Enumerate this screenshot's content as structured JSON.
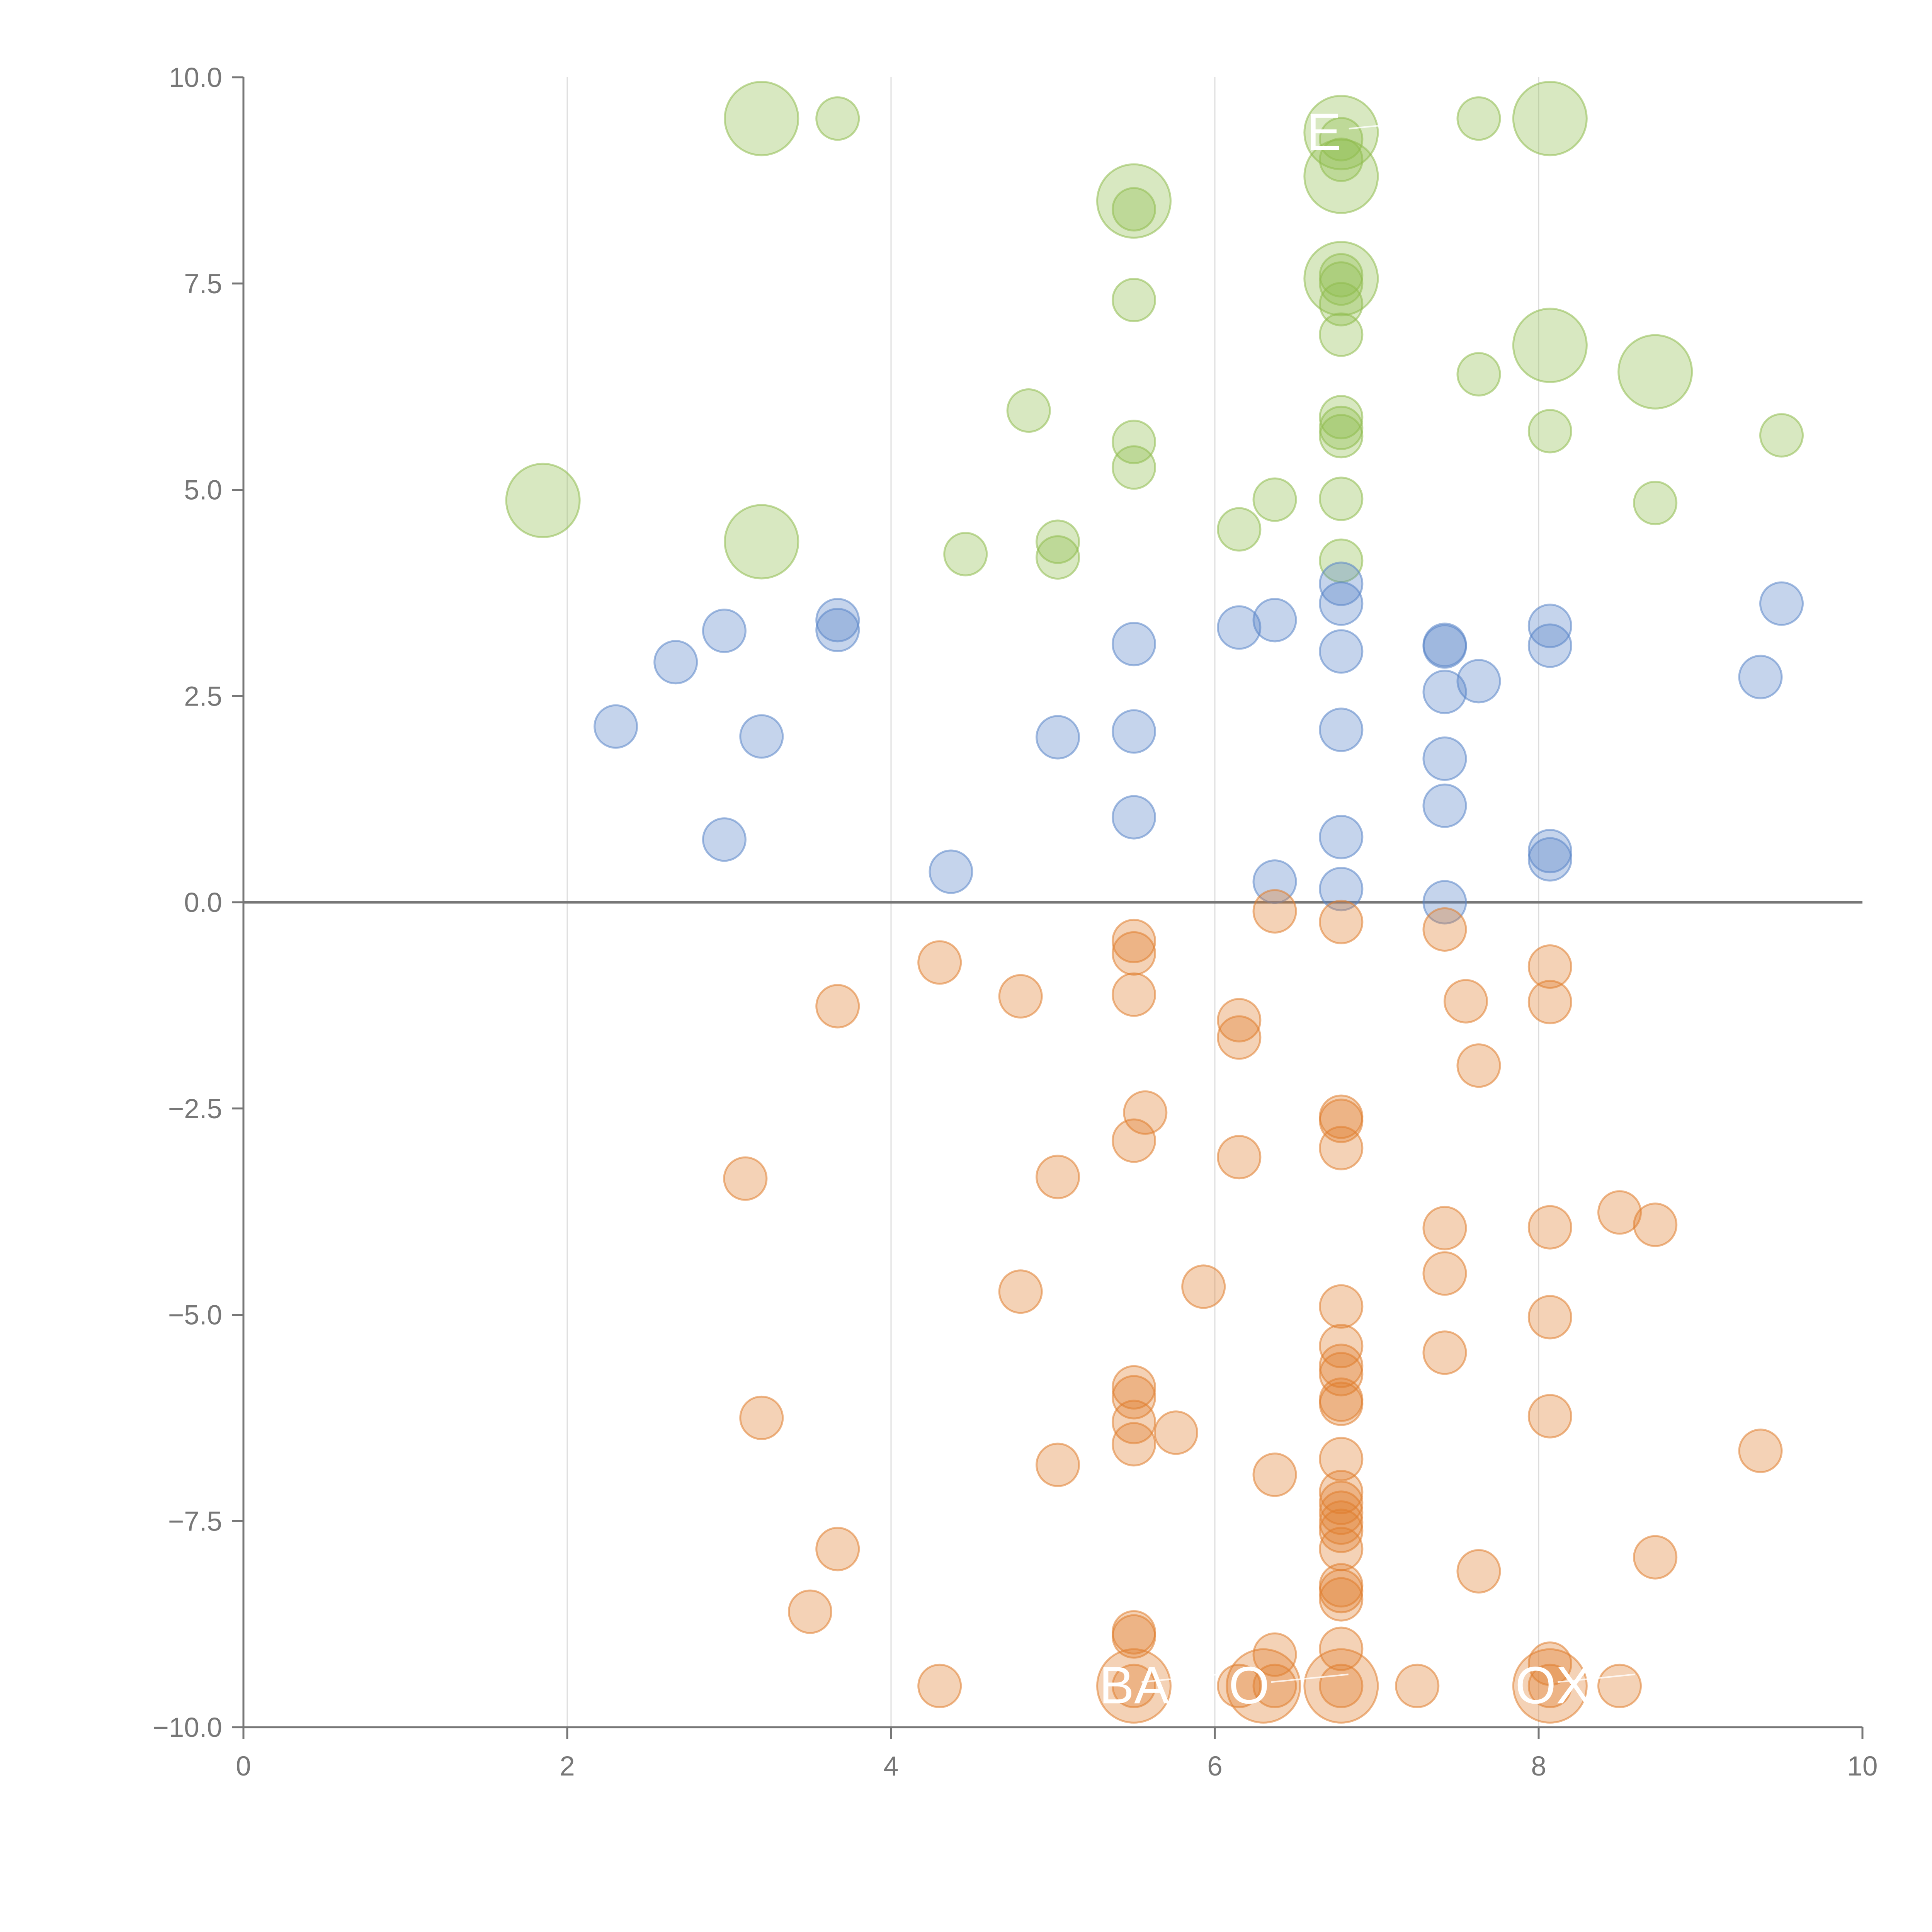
{
  "chart_data": {
    "type": "scatter",
    "title": "",
    "xlabel": "",
    "ylabel": "",
    "xlim": [
      0,
      10
    ],
    "ylim": [
      -10,
      10
    ],
    "x_ticks": [
      "0",
      "2",
      "4",
      "6",
      "8",
      "10"
    ],
    "y_ticks": [
      "10.0",
      "7.5",
      "5.0",
      "2.5",
      "0.0",
      "−2.5",
      "−5.0",
      "−7.5",
      "−10.0"
    ],
    "grid": "vertical",
    "zero_line": true,
    "colors": {
      "green": "#8fbc4e",
      "blue": "#5a85c8",
      "orange": "#e07e2e",
      "axis": "#777777",
      "grid": "#dddddd",
      "zero": "#777777"
    },
    "series": [
      {
        "name": "green",
        "points": [
          [
            3.2,
            9.5,
            3
          ],
          [
            3.67,
            9.5,
            1
          ],
          [
            5.5,
            8.5,
            3
          ],
          [
            5.5,
            8.4,
            1
          ],
          [
            6.78,
            9.33,
            3
          ],
          [
            6.78,
            9.25,
            1
          ],
          [
            6.78,
            9.0,
            1
          ],
          [
            6.78,
            8.8,
            3
          ],
          [
            7.63,
            9.5,
            1
          ],
          [
            8.07,
            9.5,
            3
          ],
          [
            5.5,
            7.3,
            1
          ],
          [
            6.78,
            7.56,
            3
          ],
          [
            6.78,
            7.6,
            1
          ],
          [
            6.78,
            7.5,
            1
          ],
          [
            6.78,
            7.25,
            1
          ],
          [
            6.78,
            6.88,
            1
          ],
          [
            8.07,
            6.75,
            3
          ],
          [
            8.72,
            6.43,
            3
          ],
          [
            7.63,
            6.4,
            1
          ],
          [
            4.85,
            5.96,
            1
          ],
          [
            5.5,
            5.58,
            1
          ],
          [
            5.5,
            5.27,
            1
          ],
          [
            6.78,
            5.88,
            1
          ],
          [
            6.78,
            5.75,
            1
          ],
          [
            6.78,
            5.65,
            1
          ],
          [
            8.07,
            5.71,
            1
          ],
          [
            9.5,
            5.66,
            1
          ],
          [
            1.85,
            4.87,
            3
          ],
          [
            3.2,
            4.37,
            3
          ],
          [
            4.46,
            4.22,
            1
          ],
          [
            5.03,
            4.37,
            1
          ],
          [
            5.03,
            4.18,
            1
          ],
          [
            6.15,
            4.52,
            1
          ],
          [
            6.37,
            4.88,
            1
          ],
          [
            6.78,
            4.89,
            1
          ],
          [
            6.78,
            4.14,
            1
          ],
          [
            8.72,
            4.84,
            1
          ]
        ]
      },
      {
        "name": "blue",
        "points": [
          [
            3.67,
            3.42,
            1
          ],
          [
            3.67,
            3.3,
            1
          ],
          [
            2.97,
            3.29,
            1
          ],
          [
            2.67,
            2.91,
            1
          ],
          [
            2.3,
            2.13,
            1
          ],
          [
            3.2,
            2.01,
            1
          ],
          [
            2.97,
            0.76,
            1
          ],
          [
            4.37,
            0.37,
            1
          ],
          [
            5.03,
            2.0,
            1
          ],
          [
            5.5,
            3.13,
            1
          ],
          [
            5.5,
            2.07,
            1
          ],
          [
            5.5,
            1.03,
            1
          ],
          [
            6.15,
            3.33,
            1
          ],
          [
            6.37,
            3.42,
            1
          ],
          [
            6.37,
            0.25,
            1
          ],
          [
            6.78,
            3.86,
            1
          ],
          [
            6.78,
            3.62,
            1
          ],
          [
            6.78,
            3.04,
            1
          ],
          [
            6.78,
            2.09,
            1
          ],
          [
            6.78,
            0.79,
            1
          ],
          [
            6.78,
            0.16,
            1
          ],
          [
            7.42,
            3.12,
            1
          ],
          [
            7.42,
            3.1,
            1
          ],
          [
            7.42,
            2.55,
            1
          ],
          [
            7.42,
            1.74,
            1
          ],
          [
            7.42,
            1.17,
            1
          ],
          [
            7.42,
            0.0,
            1
          ],
          [
            7.63,
            2.68,
            1
          ],
          [
            8.07,
            3.35,
            1
          ],
          [
            8.07,
            3.11,
            1
          ],
          [
            8.07,
            0.62,
            1
          ],
          [
            8.07,
            0.52,
            1
          ],
          [
            9.37,
            2.73,
            1
          ],
          [
            9.5,
            3.62,
            1
          ]
        ]
      },
      {
        "name": "orange",
        "points": [
          [
            3.67,
            -1.26,
            1
          ],
          [
            3.1,
            -3.35,
            1
          ],
          [
            3.2,
            -6.25,
            1
          ],
          [
            3.67,
            -7.84,
            1
          ],
          [
            3.5,
            -8.6,
            1
          ],
          [
            4.3,
            -0.73,
            1
          ],
          [
            4.3,
            -9.5,
            1
          ],
          [
            4.8,
            -1.14,
            1
          ],
          [
            4.8,
            -4.72,
            1
          ],
          [
            5.03,
            -3.33,
            1
          ],
          [
            5.03,
            -6.82,
            1
          ],
          [
            5.5,
            -0.47,
            1
          ],
          [
            5.5,
            -0.62,
            1
          ],
          [
            5.5,
            -1.12,
            1
          ],
          [
            5.5,
            -2.89,
            1
          ],
          [
            5.57,
            -2.55,
            1
          ],
          [
            5.5,
            -5.88,
            1
          ],
          [
            5.5,
            -6.0,
            1
          ],
          [
            5.5,
            -6.3,
            1
          ],
          [
            5.5,
            -6.57,
            1
          ],
          [
            5.76,
            -6.43,
            1
          ],
          [
            5.5,
            -8.85,
            1
          ],
          [
            5.5,
            -8.9,
            1
          ],
          [
            5.5,
            -9.5,
            3
          ],
          [
            5.5,
            -9.5,
            1
          ],
          [
            5.93,
            -4.66,
            1
          ],
          [
            6.15,
            -1.43,
            1
          ],
          [
            6.15,
            -1.64,
            1
          ],
          [
            6.15,
            -3.09,
            1
          ],
          [
            6.15,
            -9.5,
            1
          ],
          [
            6.3,
            -9.5,
            3
          ],
          [
            6.37,
            -0.11,
            1
          ],
          [
            6.37,
            -6.94,
            1
          ],
          [
            6.37,
            -9.12,
            1
          ],
          [
            6.37,
            -9.5,
            1
          ],
          [
            6.78,
            -0.24,
            1
          ],
          [
            6.78,
            -2.6,
            1
          ],
          [
            6.78,
            -2.65,
            1
          ],
          [
            6.78,
            -2.98,
            1
          ],
          [
            6.78,
            -4.9,
            1
          ],
          [
            6.78,
            -5.38,
            1
          ],
          [
            6.78,
            -5.62,
            1
          ],
          [
            6.78,
            -5.72,
            1
          ],
          [
            6.78,
            -6.03,
            1
          ],
          [
            6.78,
            -6.08,
            1
          ],
          [
            6.78,
            -6.75,
            1
          ],
          [
            6.78,
            -7.15,
            1
          ],
          [
            6.78,
            -7.28,
            1
          ],
          [
            6.78,
            -7.4,
            1
          ],
          [
            6.78,
            -7.52,
            1
          ],
          [
            6.78,
            -7.62,
            1
          ],
          [
            6.78,
            -7.84,
            1
          ],
          [
            6.78,
            -8.28,
            1
          ],
          [
            6.78,
            -8.35,
            1
          ],
          [
            6.78,
            -8.45,
            1
          ],
          [
            6.78,
            -9.05,
            1
          ],
          [
            6.78,
            -9.5,
            3
          ],
          [
            6.78,
            -9.5,
            1
          ],
          [
            7.25,
            -9.5,
            1
          ],
          [
            7.42,
            -0.33,
            1
          ],
          [
            7.42,
            -3.95,
            1
          ],
          [
            7.42,
            -4.5,
            1
          ],
          [
            7.42,
            -5.46,
            1
          ],
          [
            7.55,
            -1.2,
            1
          ],
          [
            7.63,
            -1.98,
            1
          ],
          [
            7.63,
            -8.11,
            1
          ],
          [
            8.07,
            -0.78,
            1
          ],
          [
            8.07,
            -1.21,
            1
          ],
          [
            8.07,
            -3.94,
            1
          ],
          [
            8.07,
            -5.03,
            1
          ],
          [
            8.07,
            -6.23,
            1
          ],
          [
            8.07,
            -9.23,
            1
          ],
          [
            8.07,
            -9.5,
            3
          ],
          [
            8.07,
            -9.5,
            1
          ],
          [
            8.5,
            -3.76,
            1
          ],
          [
            8.5,
            -9.5,
            1
          ],
          [
            8.72,
            -3.91,
            1
          ],
          [
            8.72,
            -7.94,
            1
          ],
          [
            9.37,
            -6.65,
            1
          ]
        ]
      }
    ],
    "point_labels": [
      {
        "text": "BA",
        "x": 5.5,
        "y": -9.5,
        "series": "orange"
      },
      {
        "text": "O",
        "x": 6.3,
        "y": -9.5,
        "series": "orange"
      },
      {
        "text": "OX",
        "x": 8.07,
        "y": -9.5,
        "series": "orange"
      },
      {
        "text": "E",
        "x": 6.78,
        "y": 9.33,
        "series": "green"
      }
    ]
  }
}
